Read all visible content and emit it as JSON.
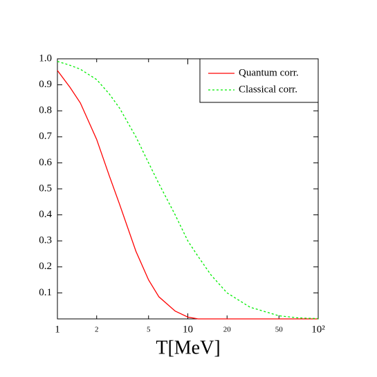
{
  "chart_data": {
    "type": "line",
    "xlabel": "T[MeV]",
    "x": [
      1,
      1.25,
      1.5,
      2,
      2.5,
      3,
      4,
      5,
      6,
      8,
      10,
      12,
      15,
      20,
      30,
      50,
      70,
      100
    ],
    "series": [
      {
        "name": "Quantum corr.",
        "color": "#ff0000",
        "dash": "solid",
        "values": [
          0.955,
          0.89,
          0.83,
          0.69,
          0.55,
          0.44,
          0.26,
          0.15,
          0.085,
          0.03,
          0.007,
          0,
          0,
          0,
          0,
          0,
          0,
          0
        ]
      },
      {
        "name": "Classical corr.",
        "color": "#00ee00",
        "dash": "dotted",
        "values": [
          0.99,
          0.975,
          0.96,
          0.92,
          0.865,
          0.81,
          0.7,
          0.6,
          0.52,
          0.4,
          0.3,
          0.24,
          0.17,
          0.1,
          0.045,
          0.012,
          0.004,
          0.001
        ]
      }
    ],
    "xscale": "log",
    "xlim": [
      1,
      100
    ],
    "xticks": [
      1,
      2,
      5,
      10,
      20,
      50,
      {
        "value": 100,
        "label": "10²"
      }
    ],
    "ylim": [
      0,
      1
    ],
    "yticks": [
      0.1,
      0.2,
      0.3,
      0.4,
      0.5,
      0.6,
      0.7,
      0.8,
      0.9,
      {
        "value": 1,
        "label": "1.0"
      }
    ],
    "legend": "upper right"
  }
}
